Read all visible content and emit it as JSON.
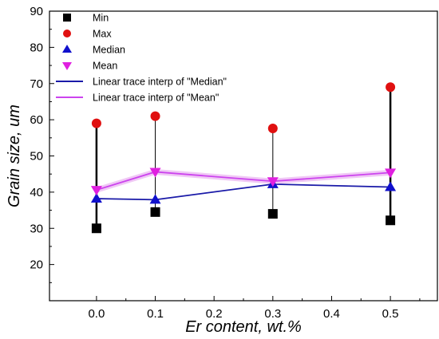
{
  "chart_data": {
    "type": "scatter",
    "xlabel": "Er content, wt.%",
    "ylabel": "Grain size, um",
    "xlim": [
      -0.08,
      0.58
    ],
    "ylim": [
      10,
      90
    ],
    "x_ticks": [
      0.0,
      0.1,
      0.2,
      0.3,
      0.4,
      0.5
    ],
    "x_tick_labels": [
      "0.0",
      "0.1",
      "0.2",
      "0.3",
      "0.4",
      "0.5"
    ],
    "y_ticks": [
      20,
      30,
      40,
      50,
      60,
      70,
      80,
      90
    ],
    "y_tick_labels": [
      "20",
      "30",
      "40",
      "50",
      "60",
      "70",
      "80",
      "90"
    ],
    "legend_position": "top-left",
    "x": [
      0.0,
      0.1,
      0.3,
      0.5
    ],
    "series": [
      {
        "name": "Min",
        "marker": "square",
        "color": "#000000",
        "values": [
          30,
          34.5,
          34,
          32.2
        ]
      },
      {
        "name": "Max",
        "marker": "circle",
        "color": "#e01010",
        "values": [
          59,
          61,
          57.6,
          69
        ]
      },
      {
        "name": "Median",
        "marker": "triangle-up",
        "color": "#1010cc",
        "values": [
          38.2,
          37.9,
          42.2,
          41.4
        ]
      },
      {
        "name": "Mean",
        "marker": "triangle-down",
        "color": "#e020e0",
        "values": [
          40.6,
          45.6,
          43,
          45.4
        ]
      }
    ],
    "lines": [
      {
        "name": "Linear trace interp of \"Median\"",
        "color": "#1a1aa8",
        "series_ref": "Median"
      },
      {
        "name": "Linear trace interp of \"Mean\"",
        "color": "#cc44ee",
        "series_ref": "Mean"
      }
    ]
  }
}
